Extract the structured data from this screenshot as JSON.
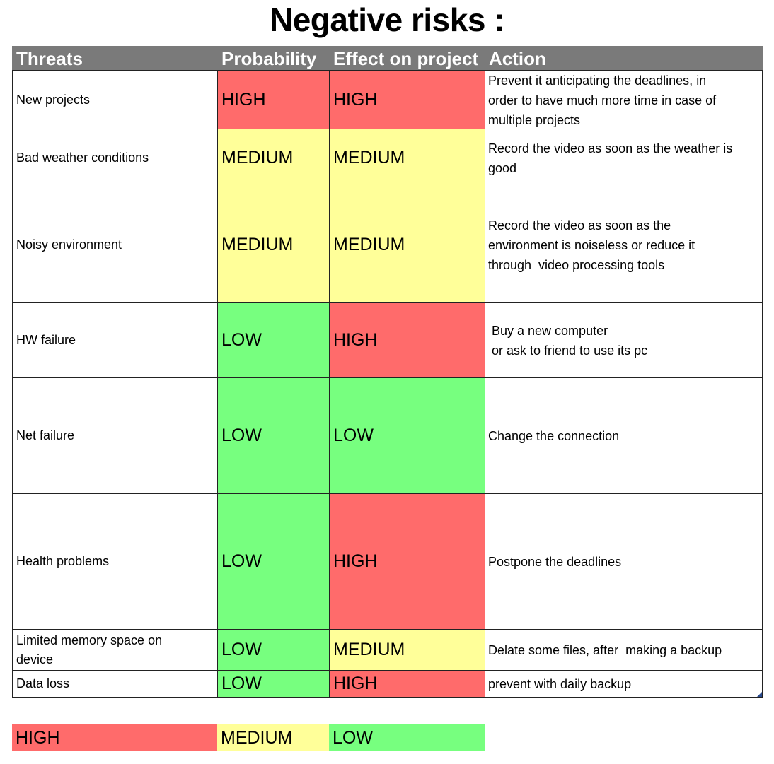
{
  "title": "Negative risks :",
  "headers": {
    "threats": "Threats",
    "probability": "Probability",
    "effect": "Effect on project",
    "action": "Action"
  },
  "colors": {
    "HIGH": "#ff6b6b",
    "MEDIUM": "#ffff99",
    "LOW": "#77ff7f",
    "header_bg": "#7a7a7a"
  },
  "rows": [
    {
      "threat": [
        "New projects"
      ],
      "probability": "HIGH",
      "effect": "HIGH",
      "action": [
        "Prevent it anticipating the deadlines, in",
        "order to have much more time in case of",
        "multiple projects"
      ]
    },
    {
      "threat": [
        "Bad weather conditions"
      ],
      "probability": "MEDIUM",
      "effect": "MEDIUM",
      "action": [
        "Record the video as soon as the weather is",
        "good"
      ]
    },
    {
      "threat": [
        "Noisy environment"
      ],
      "probability": "MEDIUM",
      "effect": "MEDIUM",
      "action": [
        "Record the video as soon as the",
        "environment is noiseless or reduce it",
        "through  video processing tools"
      ]
    },
    {
      "threat": [
        "HW failure"
      ],
      "probability": "LOW",
      "effect": "HIGH",
      "action": [
        "Buy a new computer",
        "or ask to friend to use its pc"
      ]
    },
    {
      "threat": [
        "Net failure"
      ],
      "probability": "LOW",
      "effect": "LOW",
      "action": [
        "Change the connection"
      ]
    },
    {
      "threat": [
        "Health problems"
      ],
      "probability": "LOW",
      "effect": "HIGH",
      "action": [
        "Postpone the deadlines"
      ]
    },
    {
      "threat": [
        "Limited memory space on",
        "device"
      ],
      "probability": "LOW",
      "effect": "MEDIUM",
      "action": [
        "Delate some files, after  making a backup"
      ]
    },
    {
      "threat": [
        "Data loss"
      ],
      "probability": "LOW",
      "effect": "HIGH",
      "action": [
        "prevent with daily backup"
      ]
    }
  ],
  "legend": [
    "HIGH",
    "MEDIUM",
    "LOW"
  ]
}
